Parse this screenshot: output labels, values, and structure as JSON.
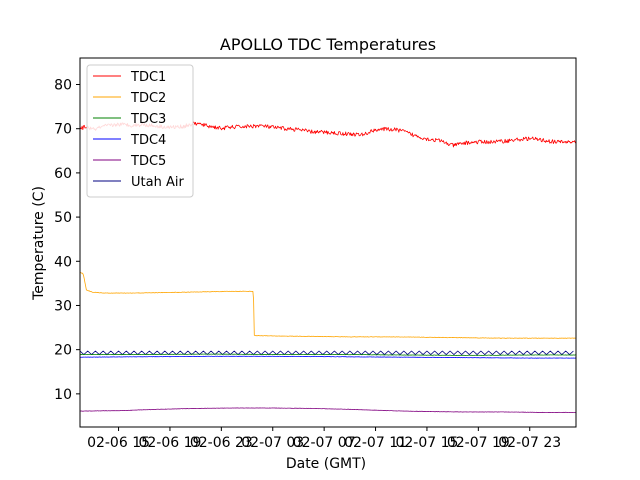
{
  "chart_data": {
    "type": "line",
    "title": "APOLLO TDC Temperatures",
    "xlabel": "Date (GMT)",
    "ylabel": "Temperature (C)",
    "xlim": [
      0,
      38.6
    ],
    "ylim": [
      2.5,
      86
    ],
    "x_ticks": [
      {
        "value": 3,
        "label": "02-06 15"
      },
      {
        "value": 7,
        "label": "02-06 19"
      },
      {
        "value": 11,
        "label": "02-06 23"
      },
      {
        "value": 15,
        "label": "02-07 03"
      },
      {
        "value": 19,
        "label": "02-07 07"
      },
      {
        "value": 23,
        "label": "02-07 11"
      },
      {
        "value": 27,
        "label": "02-07 15"
      },
      {
        "value": 31,
        "label": "02-07 19"
      },
      {
        "value": 35,
        "label": "02-07 23"
      }
    ],
    "y_ticks": [
      10,
      20,
      30,
      40,
      50,
      60,
      70,
      80
    ],
    "legend_position": "upper-left",
    "series": [
      {
        "name": "TDC1",
        "color": "#ff0000",
        "noise": 0.45,
        "x": [
          0,
          0.5,
          1,
          2,
          3,
          4,
          5,
          6,
          7,
          8,
          9,
          10,
          11,
          12,
          13,
          14,
          15,
          16,
          17,
          18,
          19,
          20,
          21,
          22,
          23,
          24,
          25,
          26,
          27,
          28,
          29,
          30,
          31,
          32,
          33,
          34,
          35,
          36,
          37,
          38.6
        ],
        "y": [
          70.0,
          70.5,
          69.8,
          70.6,
          71.0,
          70.8,
          70.9,
          70.6,
          70.3,
          70.5,
          71.2,
          70.6,
          70.1,
          70.4,
          70.5,
          70.7,
          70.3,
          70.0,
          69.8,
          69.3,
          69.2,
          69.0,
          68.8,
          68.6,
          69.8,
          69.9,
          69.6,
          68.5,
          67.7,
          67.3,
          66.2,
          66.8,
          67.0,
          67.0,
          67.2,
          67.5,
          67.8,
          67.4,
          67.0,
          67.0
        ]
      },
      {
        "name": "TDC2",
        "color": "#ffa500",
        "noise": 0.05,
        "x": [
          0,
          0.25,
          0.5,
          1,
          2,
          4,
          6,
          8,
          10,
          12,
          13.5,
          13.55,
          15,
          18,
          21,
          24,
          27,
          30,
          33,
          36,
          38.6
        ],
        "y": [
          37.5,
          37.2,
          33.5,
          33.0,
          32.8,
          32.8,
          32.9,
          33.0,
          33.1,
          33.2,
          33.2,
          23.2,
          23.1,
          23.0,
          22.9,
          22.9,
          22.8,
          22.7,
          22.6,
          22.6,
          22.6
        ]
      },
      {
        "name": "TDC3",
        "color": "#008000",
        "noise": 0.04,
        "x": [
          0,
          5,
          10,
          15,
          20,
          25,
          30,
          35,
          38.6
        ],
        "y": [
          18.9,
          18.9,
          19.0,
          18.9,
          18.9,
          18.8,
          18.7,
          18.8,
          18.8
        ]
      },
      {
        "name": "TDC4",
        "color": "#0000ff",
        "noise": 0.03,
        "x": [
          0,
          5,
          10,
          15,
          20,
          25,
          30,
          35,
          38.6
        ],
        "y": [
          18.3,
          18.4,
          18.5,
          18.5,
          18.4,
          18.3,
          18.2,
          18.1,
          18.1
        ]
      },
      {
        "name": "TDC5",
        "color": "#800080",
        "noise": 0.03,
        "x": [
          0,
          3,
          6,
          9,
          12,
          15,
          18,
          21,
          24,
          27,
          30,
          33,
          36,
          38.6
        ],
        "y": [
          6.1,
          6.2,
          6.5,
          6.7,
          6.8,
          6.8,
          6.7,
          6.5,
          6.2,
          6.0,
          5.9,
          5.9,
          5.8,
          5.8
        ]
      },
      {
        "name": "Utah Air",
        "color": "#000080",
        "oscillating": true,
        "baseline": 19.3,
        "amplitude": 0.4,
        "period": 0.6,
        "x": [
          0,
          38.6
        ],
        "y": [
          19.3,
          19.3
        ]
      }
    ]
  }
}
